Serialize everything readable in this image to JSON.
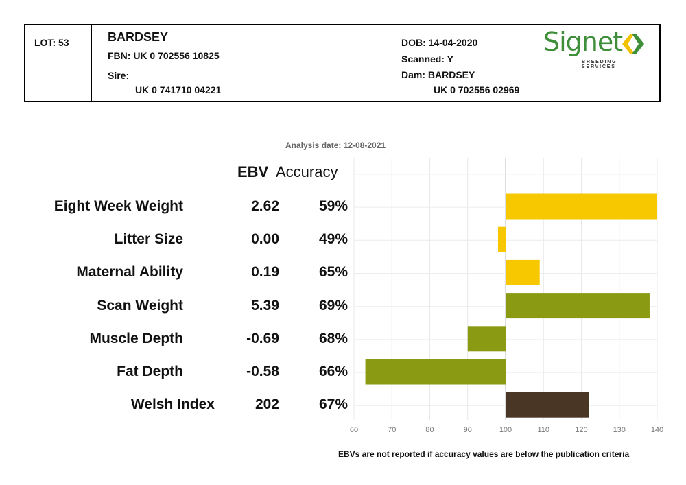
{
  "header": {
    "lot": "LOT: 53",
    "name": "BARDSEY",
    "fbn": "FBN: UK 0 702556 10825",
    "sire_label": "Sire:",
    "sire_id": "UK 0 741710 04221",
    "dob": "DOB: 14-04-2020",
    "scanned": "Scanned: Y",
    "dam": "Dam: BARDSEY",
    "dam_id": "UK 0 702556 02969"
  },
  "logo": {
    "brand": "Signet",
    "subtitle": "BREEDING SERVICES",
    "mark_color_left": "#f2c200",
    "mark_color_right": "#3f8f3a"
  },
  "analysis_date": "Analysis date: 12-08-2021",
  "columns": {
    "ebv": "EBV",
    "accuracy": "Accuracy"
  },
  "footnote": "EBVs are not reported if accuracy values are below the publication criteria",
  "chart_data": {
    "type": "bar",
    "orientation": "horizontal",
    "baseline": 100,
    "xlim": [
      60,
      140
    ],
    "xticks": [
      60,
      70,
      80,
      90,
      100,
      110,
      120,
      130,
      140
    ],
    "grid": true,
    "rows": [
      {
        "label": "Eight Week Weight",
        "ebv": "2.62",
        "accuracy": "59%",
        "value": 140,
        "color": "#f7c800"
      },
      {
        "label": "Litter Size",
        "ebv": "0.00",
        "accuracy": "49%",
        "value": 98,
        "color": "#f7c800"
      },
      {
        "label": "Maternal Ability",
        "ebv": "0.19",
        "accuracy": "65%",
        "value": 109,
        "color": "#f7c800"
      },
      {
        "label": "Scan Weight",
        "ebv": "5.39",
        "accuracy": "69%",
        "value": 138,
        "color": "#8a9a12"
      },
      {
        "label": "Muscle Depth",
        "ebv": "-0.69",
        "accuracy": "68%",
        "value": 90,
        "color": "#8a9a12"
      },
      {
        "label": "Fat Depth",
        "ebv": "-0.58",
        "accuracy": "66%",
        "value": 63,
        "color": "#8a9a12"
      },
      {
        "label": "Welsh Index",
        "ebv": "202",
        "accuracy": "67%",
        "value": 122,
        "color": "#4a3624"
      }
    ]
  }
}
